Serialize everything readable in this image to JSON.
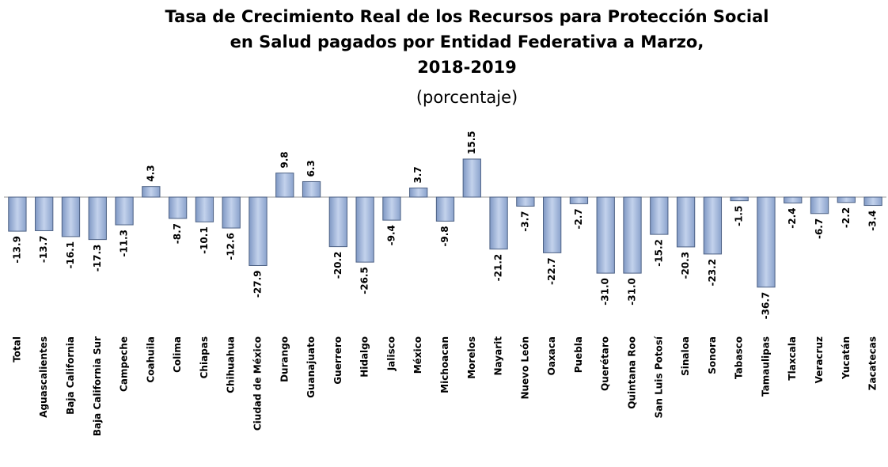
{
  "chart_data": {
    "type": "bar",
    "title": [
      "Tasa de Crecimiento Real de los Recursos para Protección Social",
      "en Salud pagados por Entidad Federativa a Marzo,",
      "2018-2019"
    ],
    "subtitle": "(porcentaje)",
    "categories": [
      "Total",
      "Aguascalientes",
      "Baja California",
      "Baja California Sur",
      "Campeche",
      "Coahuila",
      "Colima",
      "Chiapas",
      "Chihuahua",
      "Ciudad de México",
      "Durango",
      "Guanajuato",
      "Guerrero",
      "Hidalgo",
      "Jalisco",
      "México",
      "Michoacan",
      "Morelos",
      "Nayarit",
      "Nuevo León",
      "Oaxaca",
      "Puebla",
      "Querétaro",
      "Quintana Roo",
      "San Luis Potosí",
      "Sinaloa",
      "Sonora",
      "Tabasco",
      "Tamaulipas",
      "Tlaxcala",
      "Veracruz",
      "Yucatán",
      "Zacatecas"
    ],
    "values": [
      -13.9,
      -13.7,
      -16.1,
      -17.3,
      -11.3,
      4.3,
      -8.7,
      -10.1,
      -12.6,
      -27.9,
      9.8,
      6.3,
      -20.2,
      -26.5,
      -9.4,
      3.7,
      -9.8,
      15.5,
      -21.2,
      -3.7,
      -22.7,
      -2.7,
      -31.0,
      -31.0,
      -15.2,
      -20.3,
      -23.2,
      -1.5,
      -36.7,
      -2.4,
      -6.7,
      -2.2,
      -3.4
    ],
    "value_labels": [
      "-13.9",
      "-13.7",
      "-16.1",
      "-17.3",
      "-11.3",
      "4.3",
      "-8.7",
      "-10.1",
      "-12.6",
      "-27.9",
      "9.8",
      "6.3",
      "-20.2",
      "-26.5",
      "-9.4",
      "3.7",
      "-9.8",
      "15.5",
      "-21.2",
      "-3.7",
      "-22.7",
      "-2.7",
      "-31.0",
      "-31.0",
      "-15.2",
      "-20.3",
      "-23.2",
      "-1.5",
      "-36.7",
      "-2.4",
      "-6.7",
      "-2.2",
      "-3.4"
    ],
    "color": "#9fb6dc"
  }
}
